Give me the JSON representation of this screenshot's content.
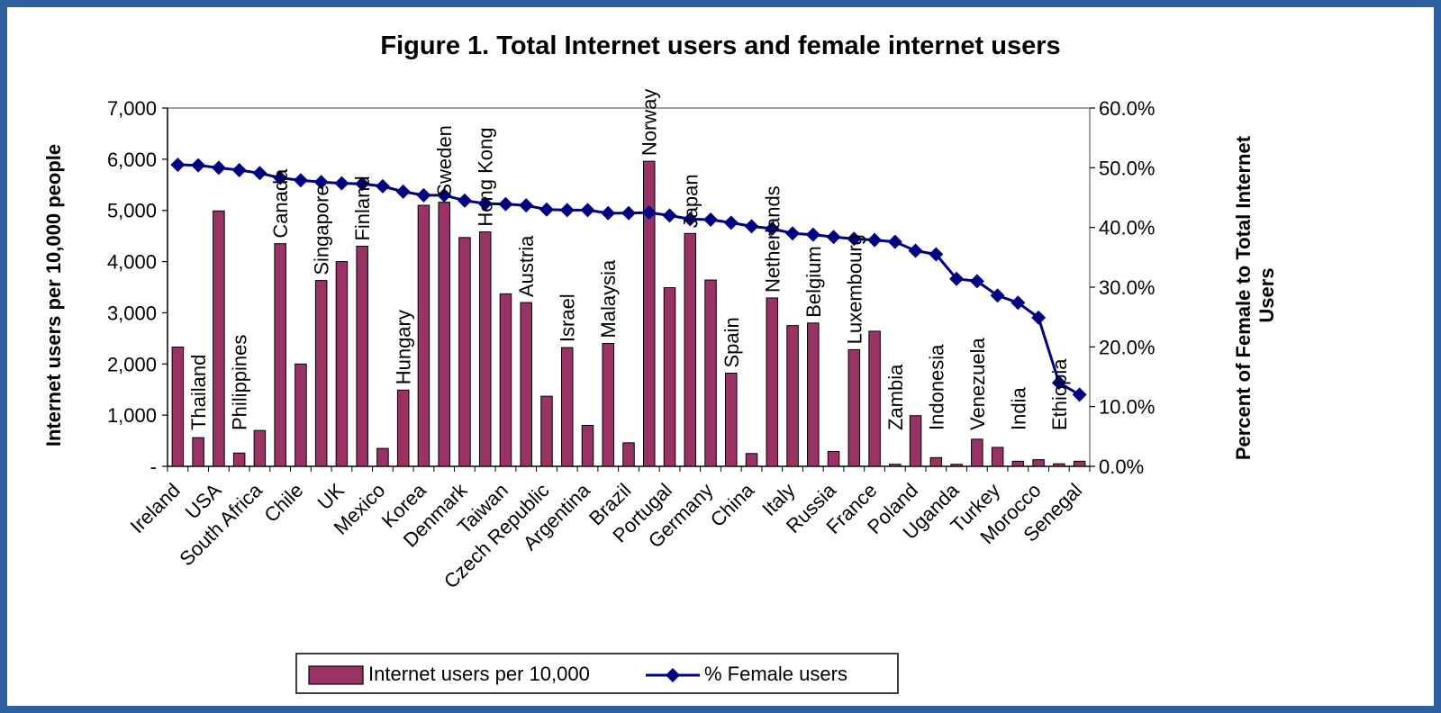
{
  "chart_data": {
    "type": "bar+line",
    "title": "Figure 1. Total Internet users and female internet users",
    "ylabel_left": "Internet users per 10,000 people",
    "ylabel_right": "Percent of Female to Total Internet Users",
    "ylim_left": [
      0,
      7000
    ],
    "ylim_right": [
      0,
      0.6
    ],
    "y_ticks_left": [
      "-",
      "1,000",
      "2,000",
      "3,000",
      "4,000",
      "5,000",
      "6,000",
      "7,000"
    ],
    "y_ticks_right": [
      "0.0%",
      "10.0%",
      "20.0%",
      "30.0%",
      "40.0%",
      "50.0%",
      "60.0%"
    ],
    "legend_position": "bottom",
    "legend": {
      "bars": "Internet users per 10,000",
      "line": "% Female users"
    },
    "colors": {
      "bars": "#993366",
      "line": "#000080",
      "frame": "#2f5f9e"
    },
    "categories": [
      "Ireland",
      "Thailand",
      "USA",
      "Philippines",
      "South Africa",
      "Canada",
      "Chile",
      "Singapore",
      "UK",
      "Finland",
      "Mexico",
      "Hungary",
      "Korea",
      "Sweden",
      "Denmark",
      "Hong Kong",
      "Taiwan",
      "Austria",
      "Czech Republic",
      "Israel",
      "Argentina",
      "Malaysia",
      "Brazil",
      "Norway",
      "Portugal",
      "Japan",
      "Germany",
      "Spain",
      "China",
      "Netherlands",
      "Italy",
      "Belgium",
      "Russia",
      "Luxembourg",
      "France",
      "Zambia",
      "Poland",
      "Indonesia",
      "Uganda",
      "Venezuela",
      "Turkey",
      "India",
      "Morocco",
      "Ethiopia",
      "Senegal"
    ],
    "bar_values": [
      2330,
      560,
      4990,
      260,
      700,
      4350,
      2000,
      3630,
      4000,
      4300,
      350,
      1490,
      5100,
      5160,
      4470,
      4580,
      3370,
      3200,
      1370,
      2320,
      800,
      2400,
      460,
      5960,
      3490,
      4550,
      3640,
      1820,
      250,
      3290,
      2750,
      2800,
      290,
      2280,
      2640,
      40,
      990,
      170,
      40,
      530,
      370,
      100,
      130,
      50,
      100
    ],
    "female_share": [
      0.505,
      0.504,
      0.5,
      0.496,
      0.491,
      0.483,
      0.479,
      0.476,
      0.474,
      0.473,
      0.469,
      0.46,
      0.454,
      0.454,
      0.445,
      0.44,
      0.439,
      0.437,
      0.43,
      0.429,
      0.429,
      0.424,
      0.424,
      0.425,
      0.42,
      0.414,
      0.413,
      0.408,
      0.402,
      0.398,
      0.39,
      0.388,
      0.384,
      0.381,
      0.379,
      0.376,
      0.361,
      0.355,
      0.314,
      0.31,
      0.286,
      0.274,
      0.249,
      0.14,
      0.12
    ]
  }
}
